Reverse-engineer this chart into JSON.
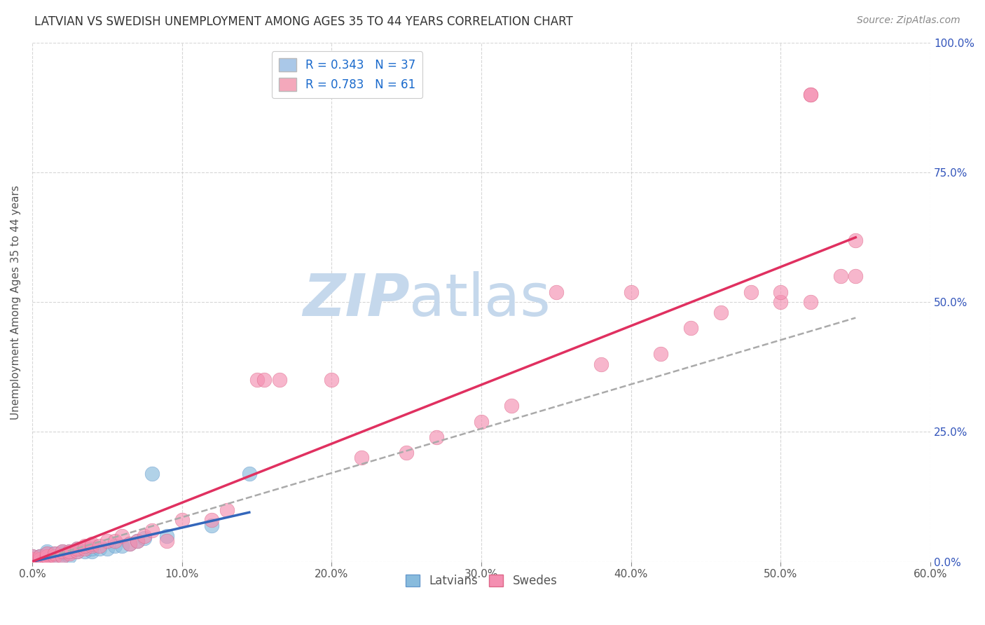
{
  "title": "LATVIAN VS SWEDISH UNEMPLOYMENT AMONG AGES 35 TO 44 YEARS CORRELATION CHART",
  "source": "Source: ZipAtlas.com",
  "ylabel": "Unemployment Among Ages 35 to 44 years",
  "xlim": [
    0.0,
    0.6
  ],
  "ylim": [
    0.0,
    1.0
  ],
  "xtick_values": [
    0.0,
    0.1,
    0.2,
    0.3,
    0.4,
    0.5,
    0.6
  ],
  "ytick_values": [
    0.0,
    0.25,
    0.5,
    0.75,
    1.0
  ],
  "legend_entries": [
    {
      "label": "R = 0.343   N = 37",
      "color": "#aac8e8"
    },
    {
      "label": "R = 0.783   N = 61",
      "color": "#f4a8bb"
    }
  ],
  "legend_bottom": [
    "Latvians",
    "Swedes"
  ],
  "latvian_scatter_color": "#88bbdd",
  "swedish_scatter_color": "#f48fb1",
  "latvian_line_color": "#3366bb",
  "swedish_line_color": "#e03060",
  "dashed_line_color": "#aaaaaa",
  "watermark_zip": "ZIP",
  "watermark_atlas": "atlas",
  "watermark_color_zip": "#c5d8ec",
  "watermark_color_atlas": "#c5d8ec",
  "background_color": "#ffffff",
  "grid_color": "#cccccc",
  "latvians_x": [
    0.0,
    0.0,
    0.0,
    0.0,
    0.0,
    0.005,
    0.005,
    0.005,
    0.005,
    0.01,
    0.01,
    0.01,
    0.01,
    0.01,
    0.015,
    0.015,
    0.02,
    0.02,
    0.02,
    0.025,
    0.025,
    0.03,
    0.03,
    0.035,
    0.04,
    0.04,
    0.045,
    0.05,
    0.055,
    0.06,
    0.065,
    0.07,
    0.075,
    0.08,
    0.09,
    0.12,
    0.145
  ],
  "latvians_y": [
    0.0,
    0.0,
    0.005,
    0.005,
    0.01,
    0.0,
    0.005,
    0.01,
    0.01,
    0.005,
    0.01,
    0.01,
    0.015,
    0.02,
    0.01,
    0.015,
    0.01,
    0.015,
    0.02,
    0.01,
    0.02,
    0.02,
    0.025,
    0.02,
    0.02,
    0.025,
    0.025,
    0.025,
    0.03,
    0.03,
    0.035,
    0.04,
    0.045,
    0.17,
    0.05,
    0.07,
    0.17
  ],
  "swedes_x": [
    0.0,
    0.0,
    0.0,
    0.0,
    0.0,
    0.005,
    0.005,
    0.005,
    0.005,
    0.01,
    0.01,
    0.01,
    0.01,
    0.015,
    0.015,
    0.02,
    0.02,
    0.025,
    0.025,
    0.03,
    0.03,
    0.035,
    0.035,
    0.04,
    0.04,
    0.045,
    0.05,
    0.055,
    0.06,
    0.065,
    0.07,
    0.075,
    0.08,
    0.09,
    0.1,
    0.12,
    0.13,
    0.15,
    0.155,
    0.165,
    0.2,
    0.22,
    0.25,
    0.27,
    0.3,
    0.32,
    0.35,
    0.38,
    0.4,
    0.42,
    0.44,
    0.46,
    0.48,
    0.5,
    0.5,
    0.52,
    0.52,
    0.52,
    0.54,
    0.55,
    0.55
  ],
  "swedes_y": [
    0.0,
    0.0,
    0.005,
    0.005,
    0.01,
    0.0,
    0.005,
    0.005,
    0.01,
    0.005,
    0.01,
    0.01,
    0.015,
    0.01,
    0.015,
    0.01,
    0.02,
    0.015,
    0.02,
    0.02,
    0.025,
    0.025,
    0.03,
    0.03,
    0.035,
    0.03,
    0.04,
    0.04,
    0.05,
    0.035,
    0.04,
    0.05,
    0.06,
    0.04,
    0.08,
    0.08,
    0.1,
    0.35,
    0.35,
    0.35,
    0.35,
    0.2,
    0.21,
    0.24,
    0.27,
    0.3,
    0.52,
    0.38,
    0.52,
    0.4,
    0.45,
    0.48,
    0.52,
    0.5,
    0.52,
    0.9,
    0.9,
    0.5,
    0.55,
    0.55,
    0.62
  ],
  "latvian_line_x": [
    0.0,
    0.145
  ],
  "latvian_line_y": [
    0.0,
    0.095
  ],
  "swedish_line_x": [
    0.0,
    0.55
  ],
  "swedish_line_y": [
    0.0,
    0.625
  ],
  "dashed_line_x": [
    0.0,
    0.55
  ],
  "dashed_line_y": [
    0.0,
    0.47
  ]
}
